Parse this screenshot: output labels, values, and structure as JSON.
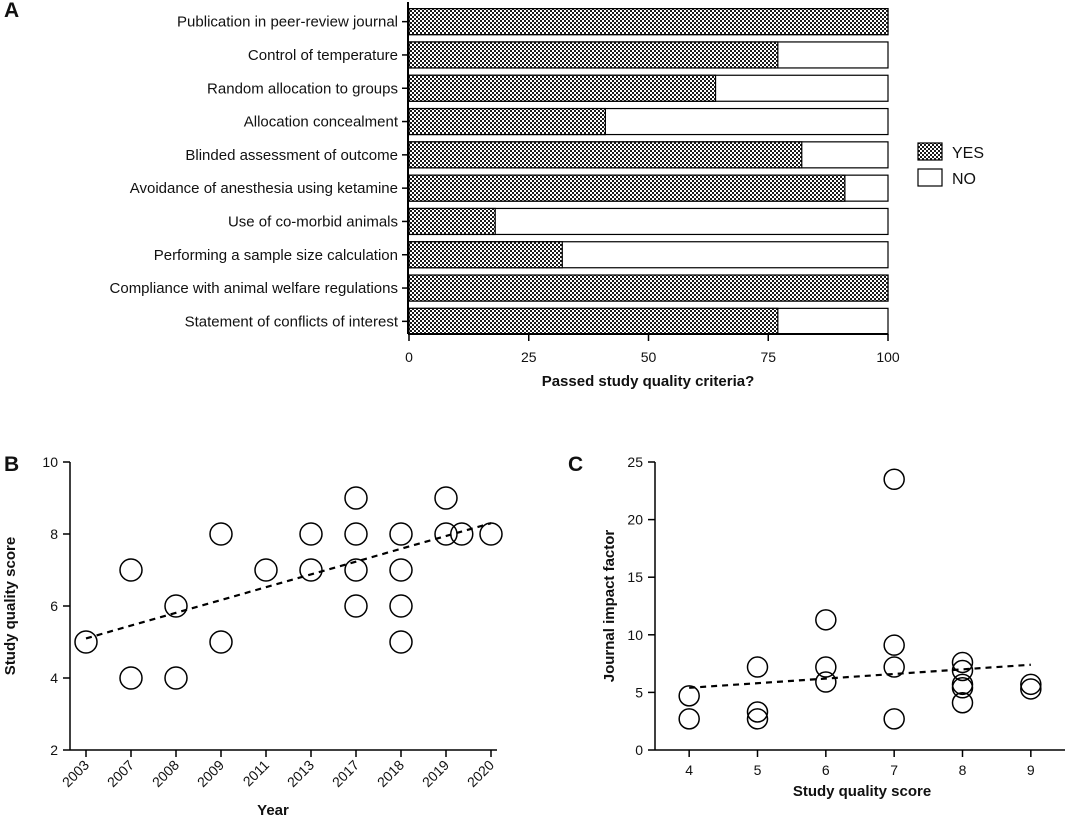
{
  "chart_data": [
    {
      "id": "A",
      "panel_label": "A",
      "type": "bar",
      "orientation": "horizontal",
      "stacked": true,
      "categories": [
        "Publication in peer-review journal",
        "Control of temperature",
        "Random allocation to groups",
        "Allocation concealment",
        "Blinded assessment of outcome",
        "Avoidance of anesthesia using ketamine",
        "Use of co-morbid animals",
        "Performing a sample size calculation",
        "Compliance with animal welfare regulations",
        "Statement of conflicts of interest"
      ],
      "series": [
        {
          "name": "YES",
          "values": [
            100,
            77,
            64,
            41,
            82,
            91,
            18,
            32,
            100,
            77
          ]
        },
        {
          "name": "NO",
          "values": [
            0,
            23,
            36,
            59,
            18,
            9,
            82,
            68,
            0,
            23
          ]
        }
      ],
      "legend": [
        "YES",
        "NO"
      ],
      "xlabel": "Passed study quality criteria?",
      "xlim": [
        0,
        100
      ],
      "xticks": [
        "0",
        "25",
        "50",
        "75",
        "100"
      ],
      "legend_position": "right"
    },
    {
      "id": "B",
      "panel_label": "B",
      "type": "scatter",
      "xlabel": "Year",
      "ylabel": "Study quality score",
      "categories": [
        "2003",
        "2007",
        "2008",
        "2009",
        "2011",
        "2013",
        "2017",
        "2018",
        "2019",
        "2020"
      ],
      "ylim": [
        2,
        10
      ],
      "yticks": [
        "2",
        "4",
        "6",
        "8",
        "10"
      ],
      "points": [
        {
          "x": 0,
          "y": 5
        },
        {
          "x": 1,
          "y": 7
        },
        {
          "x": 1,
          "y": 4
        },
        {
          "x": 2,
          "y": 6
        },
        {
          "x": 2,
          "y": 4
        },
        {
          "x": 3,
          "y": 8
        },
        {
          "x": 3,
          "y": 5
        },
        {
          "x": 4,
          "y": 7
        },
        {
          "x": 5,
          "y": 8
        },
        {
          "x": 5,
          "y": 7
        },
        {
          "x": 6,
          "y": 9
        },
        {
          "x": 6,
          "y": 8
        },
        {
          "x": 6,
          "y": 7
        },
        {
          "x": 6,
          "y": 6
        },
        {
          "x": 7,
          "y": 8
        },
        {
          "x": 7,
          "y": 7
        },
        {
          "x": 7,
          "y": 6
        },
        {
          "x": 7,
          "y": 5
        },
        {
          "x": 8,
          "y": 9
        },
        {
          "x": 8,
          "y": 8
        },
        {
          "x": 8.35,
          "y": 8
        },
        {
          "x": 9,
          "y": 8
        }
      ],
      "trendline": {
        "style": "dashed",
        "from": [
          0,
          5.1
        ],
        "to": [
          9,
          8.3
        ]
      }
    },
    {
      "id": "C",
      "panel_label": "C",
      "type": "scatter",
      "xlabel": "Study quality score",
      "ylabel": "Journal impact factor",
      "xlim": [
        3.5,
        9.5
      ],
      "xticks": [
        "4",
        "5",
        "6",
        "7",
        "8",
        "9"
      ],
      "ylim": [
        0,
        25
      ],
      "yticks": [
        "0",
        "5",
        "10",
        "15",
        "20",
        "25"
      ],
      "points": [
        {
          "x": 4,
          "y": 4.7
        },
        {
          "x": 4,
          "y": 2.7
        },
        {
          "x": 5,
          "y": 7.2
        },
        {
          "x": 5,
          "y": 3.3
        },
        {
          "x": 5,
          "y": 2.7
        },
        {
          "x": 6,
          "y": 11.3
        },
        {
          "x": 6,
          "y": 7.2
        },
        {
          "x": 6,
          "y": 5.9
        },
        {
          "x": 7,
          "y": 23.5
        },
        {
          "x": 7,
          "y": 9.1
        },
        {
          "x": 7,
          "y": 7.2
        },
        {
          "x": 7,
          "y": 2.7
        },
        {
          "x": 8,
          "y": 7.6
        },
        {
          "x": 8,
          "y": 6.9
        },
        {
          "x": 8,
          "y": 5.7
        },
        {
          "x": 8,
          "y": 5.4
        },
        {
          "x": 8,
          "y": 4.1
        },
        {
          "x": 9,
          "y": 5.7
        },
        {
          "x": 9,
          "y": 5.3
        }
      ],
      "trendline": {
        "style": "dashed",
        "from": [
          4,
          5.4
        ],
        "to": [
          9,
          7.4
        ]
      }
    }
  ]
}
